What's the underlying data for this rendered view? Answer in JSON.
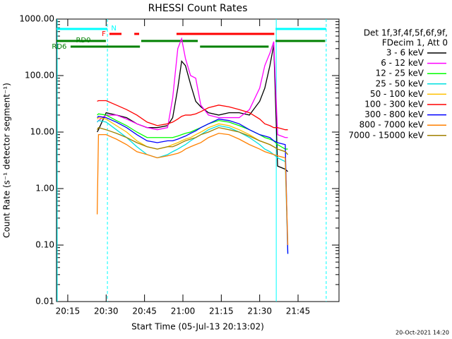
{
  "chart_data": {
    "type": "line",
    "title": "RHESSI Count Rates",
    "x_label": "Start Time (05-Jul-13 20:13:02)",
    "y_label": "Count Rate (s⁻¹ detector segment⁻¹)",
    "legend_title": [
      "Det 1f,3f,4f,5f,6f,9f,",
      "FDecim 1, Att 0"
    ],
    "footer": "20-Oct-2021 14:20",
    "log_y": true,
    "xlim": [
      1210.6,
      1321
    ],
    "xticks": [
      {
        "value": 1215,
        "label": "20:15"
      },
      {
        "value": 1230,
        "label": "20:30"
      },
      {
        "value": 1245,
        "label": "20:45"
      },
      {
        "value": 1260,
        "label": "21:00"
      },
      {
        "value": 1275,
        "label": "21:15"
      },
      {
        "value": 1290,
        "label": "21:30"
      },
      {
        "value": 1305,
        "label": "21:45"
      }
    ],
    "ylim": [
      0.01,
      1000
    ],
    "yticks": [
      {
        "value": 1000,
        "label": "1000.00"
      },
      {
        "value": 100,
        "label": "100.00"
      },
      {
        "value": 10,
        "label": "10.00"
      },
      {
        "value": 1,
        "label": "1.00"
      },
      {
        "value": 0.1,
        "label": "0.10"
      },
      {
        "value": 0.01,
        "label": "0.01"
      }
    ],
    "x": [
      1226.5,
      1227,
      1230,
      1234,
      1238,
      1242,
      1246,
      1250,
      1254,
      1256,
      1258,
      1259.5,
      1261,
      1263,
      1265,
      1267,
      1270,
      1274,
      1278,
      1282,
      1286,
      1290,
      1292,
      1294,
      1295.5,
      1297,
      1300,
      1301
    ],
    "series": [
      {
        "name": "3 - 6 keV",
        "color": "#000000",
        "values": [
          10,
          11,
          22,
          20,
          18,
          14,
          12,
          12,
          13,
          18,
          60,
          180,
          150,
          70,
          35,
          28,
          22,
          20,
          22,
          22,
          20,
          35,
          60,
          150,
          350,
          2.5,
          2.2,
          2.0
        ]
      },
      {
        "name": "6 - 12 keV",
        "color": "#ff00ff",
        "values": [
          15,
          16,
          20,
          20,
          17,
          14,
          12,
          11,
          12,
          40,
          300,
          450,
          200,
          100,
          90,
          30,
          20,
          18,
          18,
          18,
          25,
          60,
          150,
          250,
          400,
          9,
          8,
          8
        ]
      },
      {
        "name": "12 - 25 keV",
        "color": "#00ff00",
        "values": [
          20,
          21,
          20,
          16,
          13,
          10,
          8,
          8,
          8,
          8,
          8.5,
          9,
          9.5,
          10,
          11,
          12,
          14,
          16,
          15,
          13,
          11,
          9,
          8,
          7.5,
          7,
          6,
          5,
          5
        ]
      },
      {
        "name": "25 - 50 keV",
        "color": "#00e0e0",
        "values": [
          15,
          16,
          15,
          11,
          8,
          5.5,
          4,
          3.5,
          4,
          4.5,
          5,
          5.5,
          6,
          7,
          8,
          9,
          11,
          13,
          12,
          10,
          8,
          6,
          5,
          4.5,
          4,
          3.5,
          3,
          0.07
        ]
      },
      {
        "name": "50 - 100 keV",
        "color": "#ffc000",
        "values": [
          17,
          18,
          17,
          13,
          10,
          7,
          5.5,
          5,
          5.5,
          6,
          6.5,
          7,
          7.5,
          8,
          9,
          10,
          12,
          14,
          13,
          11,
          9,
          7,
          6.5,
          6,
          5.5,
          5,
          4.5,
          4
        ]
      },
      {
        "name": "100 - 300 keV",
        "color": "#ff0000",
        "values": [
          35,
          36,
          36,
          30,
          25,
          20,
          15,
          13,
          14,
          15,
          17,
          19,
          20,
          20,
          21,
          23,
          27,
          30,
          28,
          25,
          22,
          17,
          14,
          13,
          12,
          12,
          11,
          11
        ]
      },
      {
        "name": "300 - 800 keV",
        "color": "#0000ff",
        "values": [
          18,
          19,
          18,
          15,
          12,
          9,
          7,
          6.5,
          7,
          7,
          7.5,
          8,
          8.5,
          9.5,
          10.5,
          12,
          14,
          17,
          16,
          14,
          11,
          9,
          8.5,
          8,
          7,
          6.5,
          6,
          0.07
        ]
      },
      {
        "name": "800 - 7000 keV",
        "color": "#ff8000",
        "values": [
          0.35,
          9,
          9,
          7.5,
          6,
          4.5,
          4,
          3.5,
          3.8,
          4,
          4.2,
          4.5,
          5,
          5.5,
          6,
          6.5,
          8,
          9.5,
          9,
          7.5,
          6,
          5,
          4.5,
          4.2,
          4,
          3.8,
          3.5,
          0.1
        ]
      },
      {
        "name": "7000 - 15000 keV",
        "color": "#a08000",
        "values": [
          11,
          12,
          11,
          9.5,
          8,
          6.5,
          5.5,
          5,
          5.5,
          5.5,
          6,
          6.5,
          7,
          7.5,
          8,
          9,
          10,
          12,
          11,
          10,
          8.5,
          7,
          6.5,
          6,
          5.5,
          5,
          4.5,
          4
        ]
      }
    ],
    "flags": [
      {
        "label": "N",
        "color": "#00ffff",
        "intervals": [
          [
            1210.6,
            1230.5
          ],
          [
            1296.2,
            1316
          ]
        ]
      },
      {
        "label": "F",
        "color": "#ff0000",
        "intervals": [
          [
            1231.3,
            1236
          ],
          [
            1241,
            1242.9
          ],
          [
            1257.5,
            1295.7
          ]
        ]
      },
      {
        "label": "RD0",
        "color": "#008000",
        "intervals": [
          [
            1210.6,
            1229.9
          ],
          [
            1243.7,
            1265.8
          ],
          [
            1296.2,
            1315.6
          ]
        ]
      },
      {
        "label": "RD6",
        "color": "#008000",
        "intervals": [
          [
            1216.1,
            1243.2
          ],
          [
            1266.7,
            1293.5
          ]
        ]
      }
    ]
  }
}
